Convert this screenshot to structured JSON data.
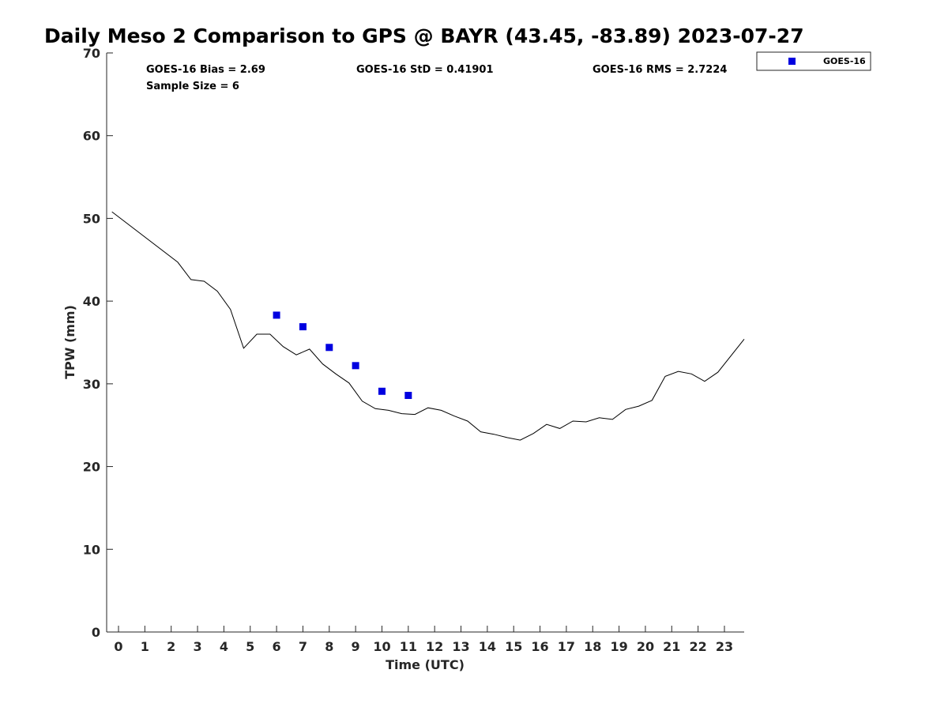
{
  "chart_data": {
    "type": "line",
    "title": "Daily Meso 2 Comparison to GPS @ BAYR (43.45, -83.89) 2023-07-27",
    "xlabel": "Time (UTC)",
    "ylabel": "TPW (mm)",
    "xlim": [
      -0.45,
      23.75
    ],
    "ylim": [
      0,
      70
    ],
    "x_ticks": [
      0,
      1,
      2,
      3,
      4,
      5,
      6,
      7,
      8,
      9,
      10,
      11,
      12,
      13,
      14,
      15,
      16,
      17,
      18,
      19,
      20,
      21,
      22,
      23
    ],
    "y_ticks": [
      0,
      10,
      20,
      30,
      40,
      50,
      60,
      70
    ],
    "grid": false,
    "legend_position": "outside top-right",
    "stats": [
      {
        "label": "GOES-16 Bias = 2.69"
      },
      {
        "label": "GOES-16 StD = 0.41901"
      },
      {
        "label": "GOES-16 RMS = 2.7224"
      },
      {
        "label": "Sample Size = 6"
      }
    ],
    "series": [
      {
        "kind": "line",
        "color": "#000000",
        "x": [
          -0.25,
          2.25,
          2.75,
          3.25,
          3.75,
          4.25,
          4.75,
          5.25,
          5.75,
          6.25,
          6.75,
          7.25,
          7.75,
          8.25,
          8.75,
          9.25,
          9.75,
          10.25,
          10.75,
          11.25,
          11.75,
          12.25,
          12.75,
          13.25,
          13.75,
          14.25,
          14.75,
          15.25,
          15.75,
          16.25,
          16.75,
          17.25,
          17.75,
          18.25,
          18.75,
          19.25,
          19.75,
          20.25,
          20.75,
          21.25,
          21.75,
          22.25,
          22.75,
          23.75
        ],
        "y": [
          50.8,
          44.7,
          42.6,
          42.4,
          41.2,
          39.0,
          34.3,
          36.0,
          36.0,
          34.5,
          33.5,
          34.2,
          32.4,
          31.2,
          30.1,
          27.9,
          27.0,
          26.8,
          26.4,
          26.3,
          27.1,
          26.8,
          26.1,
          25.5,
          24.2,
          23.9,
          23.5,
          23.2,
          24.0,
          25.1,
          24.6,
          25.5,
          25.4,
          25.9,
          25.7,
          26.9,
          27.3,
          28.0,
          30.9,
          31.5,
          31.2,
          30.3,
          31.4,
          35.4
        ]
      },
      {
        "kind": "scatter",
        "name": "GOES-16",
        "color": "#0000e0",
        "x": [
          6,
          7,
          8,
          9,
          10,
          11
        ],
        "y": [
          38.3,
          36.9,
          34.4,
          32.2,
          29.1,
          28.6
        ]
      }
    ]
  }
}
